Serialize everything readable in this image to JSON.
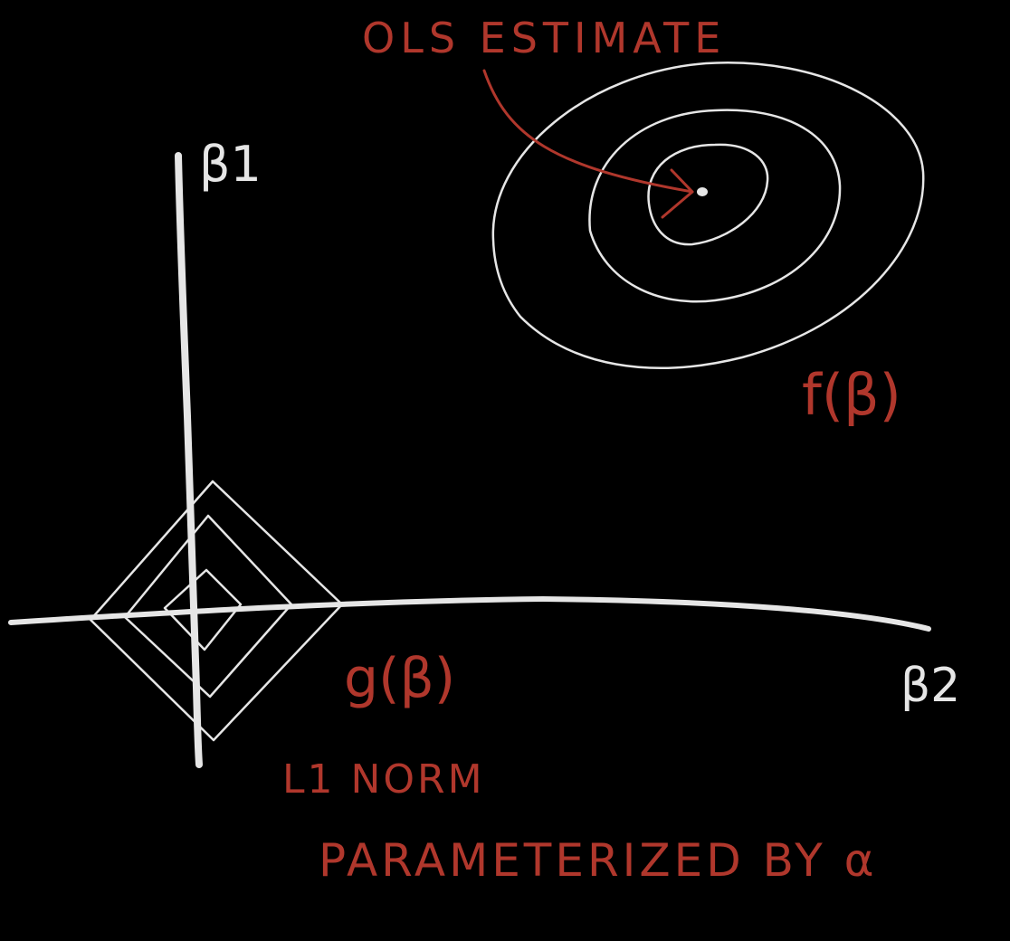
{
  "colors": {
    "background": "#000000",
    "chalk": "#e6e6e6",
    "annotation": "#b0372c"
  },
  "axes": {
    "vertical_label": "β1",
    "horizontal_label": "β2"
  },
  "annotations": {
    "ols": "OLS ESTIMATE",
    "loss": "f(β)",
    "constraint": "g(β)",
    "norm_name": "L1 NORM",
    "parameter": "PARAMETERIZED BY α"
  },
  "contours": {
    "ellipse_rings": 3,
    "diamond_rings": 3
  }
}
